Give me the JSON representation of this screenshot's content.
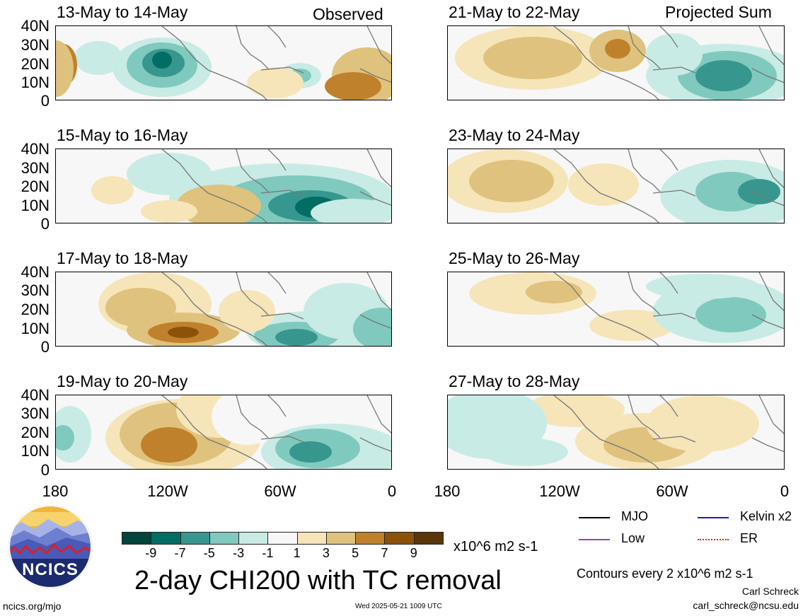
{
  "labels": {
    "observed": "Observed",
    "projected": "Projected Sum"
  },
  "panels": {
    "left": [
      {
        "title": "13-May to 14-May"
      },
      {
        "title": "15-May to 16-May"
      },
      {
        "title": "17-May to 18-May"
      },
      {
        "title": "19-May to 20-May"
      }
    ],
    "right": [
      {
        "title": "21-May to 22-May"
      },
      {
        "title": "23-May to 24-May"
      },
      {
        "title": "25-May to 26-May"
      },
      {
        "title": "27-May to 28-May"
      }
    ]
  },
  "axes": {
    "y_ticks": [
      "40N",
      "30N",
      "20N",
      "10N",
      "0"
    ],
    "x_ticks": [
      "180",
      "120W",
      "60W",
      "0"
    ]
  },
  "colorbar": {
    "units": "x10^6 m2 s-1",
    "labels": [
      "-9",
      "-7",
      "-5",
      "-3",
      "-1",
      "1",
      "3",
      "5",
      "7",
      "9"
    ],
    "colors": [
      "#01453d",
      "#016d64",
      "#37978f",
      "#80c9be",
      "#c9ebe5",
      "#f7f7f7",
      "#f5e5b8",
      "#dfc27d",
      "#bf812c",
      "#8c520a",
      "#5a3608"
    ]
  },
  "title": "2-day CHI200 with TC removal",
  "legend": {
    "mjo": "MJO",
    "kelvin": "Kelvin x2",
    "low": "Low",
    "er": "ER",
    "colors": {
      "mjo": "#000000",
      "kelvin": "#1a1acc",
      "low": "#9b3fd1",
      "er": "#e8211d"
    }
  },
  "contour_note": "Contours every 2 x10^6 m2 s-1",
  "author": "Carl Schreck",
  "email": "carl_schreck@ncsu.edu",
  "logo_text": "NCICS",
  "website": "ncics.org/mjo",
  "timestamp": "Wed 2025-05-21 1009 UTC"
}
